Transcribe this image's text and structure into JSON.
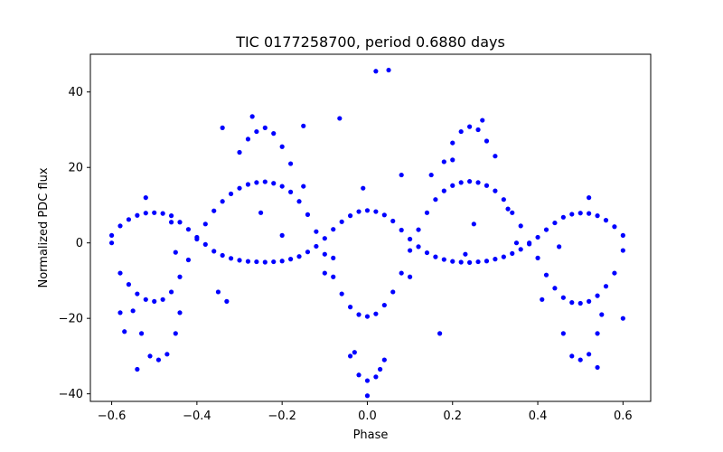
{
  "chart_data": {
    "type": "scatter",
    "title": "TIC 0177258700, period 0.6880 days",
    "xlabel": "Phase",
    "ylabel": "Normalized PDC flux",
    "xlim": [
      -0.65,
      0.665
    ],
    "ylim": [
      -42,
      50
    ],
    "xticks": [
      -0.6,
      -0.4,
      -0.2,
      0.0,
      0.2,
      0.4,
      0.6
    ],
    "xtick_labels": [
      "−0.6",
      "−0.4",
      "−0.2",
      "0.0",
      "0.2",
      "0.4",
      "0.6"
    ],
    "yticks": [
      -40,
      -20,
      0,
      20,
      40
    ],
    "ytick_labels": [
      "−40",
      "−20",
      "0",
      "20",
      "40"
    ],
    "grid": false,
    "marker_color": "#0000ff",
    "series": [
      {
        "points": [
          [
            -0.6,
            2.0
          ],
          [
            -0.58,
            4.5
          ],
          [
            -0.56,
            6.2
          ],
          [
            -0.54,
            7.3
          ],
          [
            -0.52,
            7.9
          ],
          [
            -0.5,
            8.0
          ],
          [
            -0.48,
            7.8
          ],
          [
            -0.46,
            7.2
          ],
          [
            -0.44,
            5.5
          ],
          [
            -0.42,
            3.6
          ],
          [
            -0.4,
            1.5
          ],
          [
            -0.38,
            -0.4
          ],
          [
            -0.36,
            -2.2
          ],
          [
            -0.34,
            -3.3
          ],
          [
            -0.32,
            -4.1
          ],
          [
            -0.3,
            -4.6
          ],
          [
            -0.28,
            -4.9
          ],
          [
            -0.26,
            -5.0
          ],
          [
            -0.24,
            -5.1
          ],
          [
            -0.22,
            -5.0
          ],
          [
            -0.2,
            -4.8
          ],
          [
            -0.18,
            -4.3
          ],
          [
            -0.16,
            -3.6
          ],
          [
            -0.14,
            -2.4
          ],
          [
            -0.12,
            -0.9
          ],
          [
            -0.1,
            1.2
          ],
          [
            -0.08,
            3.6
          ],
          [
            -0.06,
            5.6
          ],
          [
            -0.04,
            7.2
          ],
          [
            -0.02,
            8.3
          ],
          [
            0.0,
            8.6
          ],
          [
            0.02,
            8.3
          ],
          [
            0.04,
            7.4
          ],
          [
            0.06,
            5.8
          ],
          [
            0.08,
            3.4
          ],
          [
            0.1,
            1.0
          ],
          [
            0.12,
            -1.0
          ],
          [
            0.14,
            -2.6
          ],
          [
            0.16,
            -3.7
          ],
          [
            0.18,
            -4.4
          ],
          [
            0.2,
            -4.9
          ],
          [
            0.22,
            -5.1
          ],
          [
            0.24,
            -5.2
          ],
          [
            0.26,
            -5.0
          ],
          [
            0.28,
            -4.8
          ],
          [
            0.3,
            -4.3
          ],
          [
            0.32,
            -3.7
          ],
          [
            0.34,
            -2.8
          ],
          [
            0.36,
            -1.7
          ],
          [
            0.38,
            -0.3
          ],
          [
            0.4,
            1.5
          ],
          [
            0.42,
            3.5
          ],
          [
            0.44,
            5.3
          ],
          [
            0.46,
            6.8
          ],
          [
            0.48,
            7.6
          ],
          [
            0.5,
            7.9
          ],
          [
            0.52,
            7.8
          ],
          [
            0.54,
            7.2
          ],
          [
            0.56,
            6.0
          ],
          [
            0.58,
            4.3
          ],
          [
            0.6,
            2.0
          ],
          [
            -0.6,
            0.0
          ],
          [
            -0.58,
            -8.0
          ],
          [
            -0.56,
            -11.0
          ],
          [
            -0.54,
            -13.5
          ],
          [
            -0.52,
            -15.0
          ],
          [
            -0.5,
            -15.5
          ],
          [
            -0.48,
            -15.0
          ],
          [
            -0.46,
            -13.0
          ],
          [
            -0.44,
            -9.0
          ],
          [
            -0.42,
            -4.5
          ],
          [
            -0.4,
            1.0
          ],
          [
            -0.38,
            5.0
          ],
          [
            -0.36,
            8.5
          ],
          [
            -0.34,
            11.0
          ],
          [
            -0.32,
            13.0
          ],
          [
            -0.3,
            14.5
          ],
          [
            -0.28,
            15.5
          ],
          [
            -0.26,
            16.0
          ],
          [
            -0.24,
            16.2
          ],
          [
            -0.22,
            15.8
          ],
          [
            -0.2,
            15.0
          ],
          [
            -0.18,
            13.5
          ],
          [
            -0.16,
            11.0
          ],
          [
            -0.14,
            7.5
          ],
          [
            -0.12,
            3.0
          ],
          [
            -0.1,
            -3.0
          ],
          [
            -0.08,
            -9.0
          ],
          [
            -0.06,
            -13.5
          ],
          [
            -0.04,
            -17.0
          ],
          [
            -0.02,
            -19.0
          ],
          [
            0.0,
            -19.5
          ],
          [
            0.02,
            -18.8
          ],
          [
            0.04,
            -16.5
          ],
          [
            0.06,
            -13.0
          ],
          [
            0.08,
            -8.0
          ],
          [
            0.1,
            -2.0
          ],
          [
            0.12,
            3.5
          ],
          [
            0.14,
            8.0
          ],
          [
            0.16,
            11.5
          ],
          [
            0.18,
            13.8
          ],
          [
            0.2,
            15.2
          ],
          [
            0.22,
            16.0
          ],
          [
            0.24,
            16.3
          ],
          [
            0.26,
            16.0
          ],
          [
            0.28,
            15.2
          ],
          [
            0.3,
            13.8
          ],
          [
            0.32,
            11.5
          ],
          [
            0.34,
            8.0
          ],
          [
            0.36,
            4.5
          ],
          [
            0.38,
            0.0
          ],
          [
            0.4,
            -4.0
          ],
          [
            0.42,
            -8.5
          ],
          [
            0.44,
            -12.0
          ],
          [
            0.46,
            -14.5
          ],
          [
            0.48,
            -15.8
          ],
          [
            0.5,
            -16.0
          ],
          [
            0.52,
            -15.5
          ],
          [
            0.54,
            -14.0
          ],
          [
            0.56,
            -11.5
          ],
          [
            0.58,
            -8.0
          ],
          [
            0.6,
            -2.0
          ],
          [
            -0.55,
            -18.0
          ],
          [
            -0.53,
            -24.0
          ],
          [
            -0.51,
            -30.0
          ],
          [
            -0.49,
            -31.0
          ],
          [
            -0.47,
            -29.5
          ],
          [
            -0.45,
            -24.0
          ],
          [
            -0.44,
            -18.5
          ],
          [
            -0.04,
            -30.0
          ],
          [
            -0.02,
            -35.0
          ],
          [
            0.0,
            -36.5
          ],
          [
            0.02,
            -35.5
          ],
          [
            0.04,
            -31.0
          ],
          [
            0.46,
            -24.0
          ],
          [
            0.48,
            -30.0
          ],
          [
            0.5,
            -31.0
          ],
          [
            0.52,
            -29.5
          ],
          [
            0.54,
            -24.0
          ],
          [
            0.55,
            -19.0
          ],
          [
            -0.3,
            24.0
          ],
          [
            -0.28,
            27.5
          ],
          [
            -0.26,
            29.5
          ],
          [
            -0.24,
            30.5
          ],
          [
            -0.22,
            29.0
          ],
          [
            -0.2,
            25.5
          ],
          [
            -0.18,
            21.0
          ],
          [
            0.18,
            21.5
          ],
          [
            0.2,
            26.5
          ],
          [
            0.22,
            29.5
          ],
          [
            0.24,
            30.8
          ],
          [
            0.26,
            30.0
          ],
          [
            0.28,
            27.0
          ],
          [
            0.3,
            23.0
          ],
          [
            0.02,
            45.5
          ],
          [
            0.05,
            45.8
          ],
          [
            -0.065,
            33.0
          ],
          [
            -0.15,
            31.0
          ],
          [
            -0.34,
            30.5
          ],
          [
            0.08,
            18.0
          ],
          [
            0.2,
            22.0
          ],
          [
            -0.58,
            -18.5
          ],
          [
            -0.57,
            -23.5
          ],
          [
            -0.33,
            -15.5
          ],
          [
            -0.35,
            -13.0
          ],
          [
            -0.08,
            -4.0
          ],
          [
            0.17,
            -24.0
          ],
          [
            0.35,
            0.0
          ],
          [
            0.33,
            9.0
          ],
          [
            -0.2,
            2.0
          ],
          [
            -0.25,
            8.0
          ],
          [
            0.25,
            5.0
          ],
          [
            0.23,
            -3.0
          ],
          [
            -0.52,
            12.0
          ],
          [
            -0.45,
            -2.5
          ],
          [
            0.45,
            -1.0
          ],
          [
            0.52,
            12.0
          ],
          [
            0.6,
            -20.0
          ],
          [
            -0.46,
            5.5
          ],
          [
            0.41,
            -15.0
          ],
          [
            -0.1,
            -8.0
          ],
          [
            0.1,
            -9.0
          ],
          [
            -0.15,
            15.0
          ],
          [
            0.15,
            18.0
          ],
          [
            -0.01,
            14.5
          ],
          [
            0.0,
            -40.5
          ],
          [
            -0.54,
            -33.5
          ],
          [
            0.54,
            -33.0
          ],
          [
            -0.03,
            -29.0
          ],
          [
            0.03,
            -33.5
          ],
          [
            -0.27,
            33.5
          ],
          [
            0.27,
            32.5
          ]
        ]
      }
    ]
  }
}
